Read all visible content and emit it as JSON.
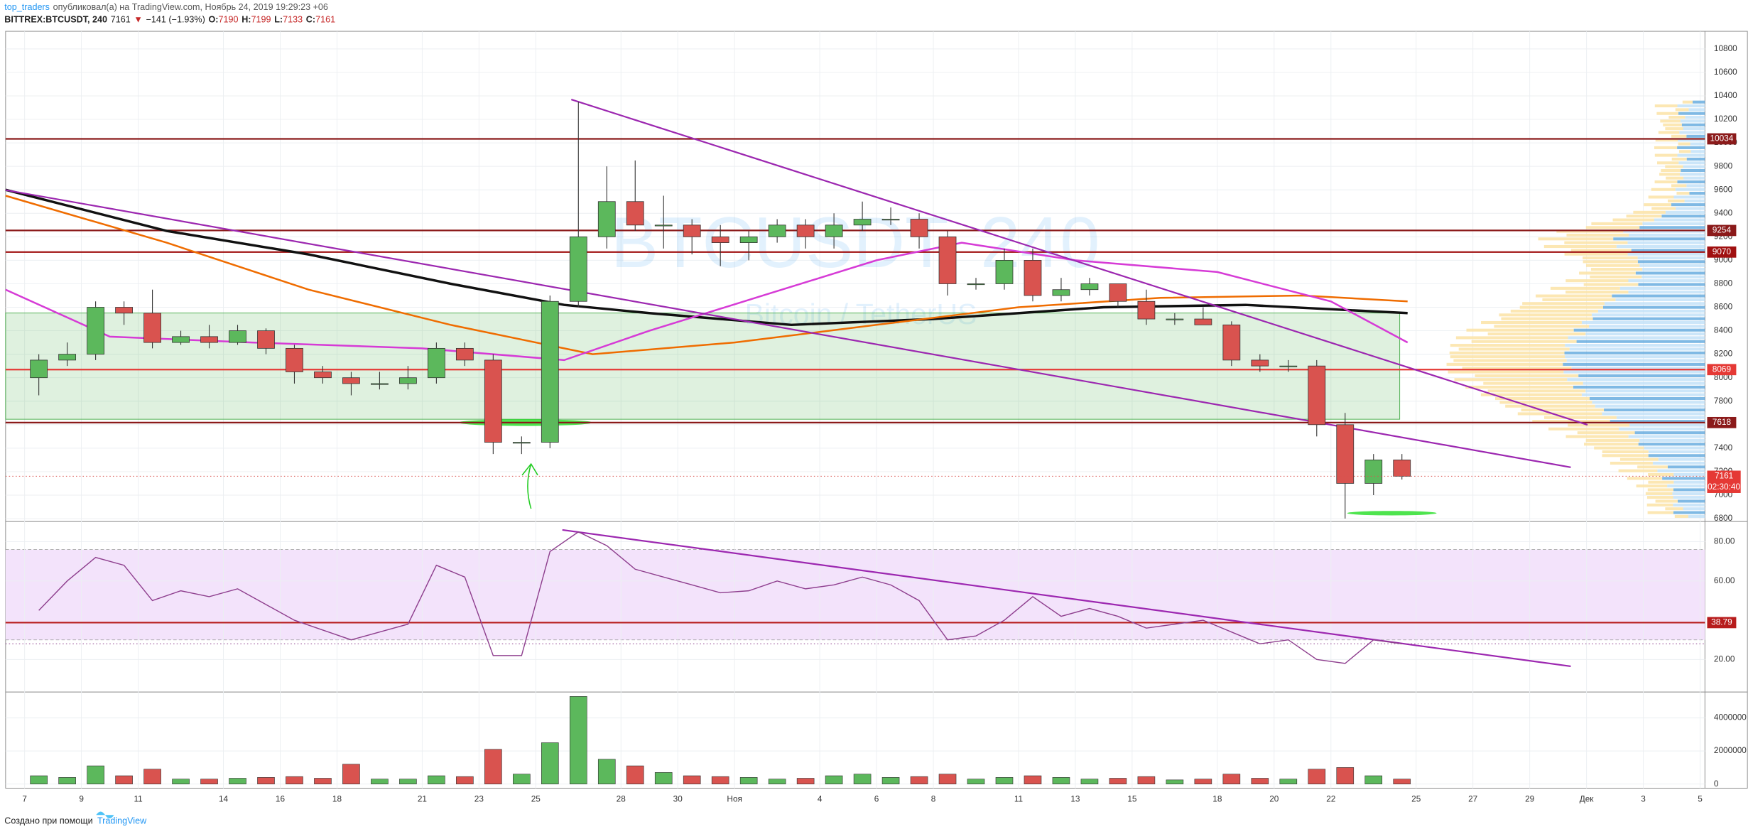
{
  "header": {
    "author": "top_traders",
    "published": "опубликовал(а) на TradingView.com, Ноябрь 24, 2019 19:29:23 +06",
    "symbol": "BITTREX:BTCUSDT, 240",
    "last": "7161",
    "arrow": "▼",
    "change": "−141 (−1.93%)",
    "o_label": "O:",
    "o": "7190",
    "h_label": "H:",
    "h": "7199",
    "l_label": "L:",
    "l": "7133",
    "c_label": "C:",
    "c": "7161"
  },
  "footer": {
    "text": "Создано при помощи",
    "brand": "TradingView"
  },
  "chart_data": [
    {
      "type": "candlestick",
      "watermark": "BTCUSDT, 240",
      "watermark_sub": "Bitcoin / TetherUS",
      "open": [
        8000,
        8150,
        8200,
        8600,
        8550,
        8300,
        8350,
        8300,
        8400,
        8250,
        8050,
        8000,
        7950,
        7950,
        8000,
        8250,
        8150,
        7450,
        7450,
        8650,
        9200,
        9500,
        9300,
        9300,
        9200,
        9150,
        9200,
        9300,
        9200,
        9300,
        9350,
        9350,
        9200,
        8800,
        8800,
        9000,
        8700,
        8750,
        8800,
        8650,
        8500,
        8500,
        8450,
        8150,
        8100,
        8100,
        7600,
        7100,
        7300
      ],
      "high": [
        8200,
        8300,
        8650,
        8650,
        8750,
        8400,
        8450,
        8450,
        8420,
        8280,
        8100,
        8050,
        8050,
        8100,
        8300,
        8300,
        8200,
        7500,
        8700,
        10350,
        9800,
        9850,
        9550,
        9350,
        9300,
        9250,
        9350,
        9350,
        9400,
        9500,
        9450,
        9400,
        9250,
        8850,
        9100,
        9100,
        8850,
        8850,
        8800,
        8750,
        8550,
        8600,
        8480,
        8200,
        8150,
        8150,
        7700,
        7350,
        7350
      ],
      "low": [
        7850,
        8100,
        8150,
        8450,
        8250,
        8280,
        8250,
        8280,
        8200,
        7950,
        7950,
        7850,
        7900,
        7900,
        7950,
        8100,
        7350,
        7350,
        7400,
        8600,
        9100,
        9250,
        9100,
        9050,
        8950,
        9000,
        9150,
        9100,
        9100,
        9250,
        9300,
        9100,
        8700,
        8750,
        8750,
        8650,
        8650,
        8700,
        8600,
        8450,
        8450,
        8450,
        8100,
        8050,
        8050,
        7500,
        6800,
        7000,
        7133
      ],
      "close": [
        8150,
        8200,
        8600,
        8550,
        8300,
        8350,
        8300,
        8400,
        8250,
        8050,
        8000,
        7950,
        7950,
        8000,
        8250,
        8150,
        7450,
        7450,
        8650,
        9200,
        9500,
        9300,
        9300,
        9200,
        9150,
        9200,
        9300,
        9200,
        9300,
        9350,
        9350,
        9200,
        8800,
        8800,
        9000,
        8700,
        8750,
        8800,
        8650,
        8500,
        8500,
        8450,
        8150,
        8100,
        8100,
        7600,
        7100,
        7300,
        7161
      ],
      "up_color": "#5cb85c",
      "down_color": "#d9534f",
      "countdown": "02:30:40",
      "ylim": [
        6780,
        10950
      ],
      "yticks": [
        6800,
        7000,
        7200,
        7400,
        7600,
        7800,
        8000,
        8200,
        8400,
        8600,
        8800,
        9000,
        9200,
        9400,
        9600,
        9800,
        10000,
        10200,
        10400,
        10600,
        10800
      ],
      "levels": [
        10034,
        9254,
        9070,
        8069,
        7618
      ],
      "level_colors": [
        "#8b1a1a",
        "#8b1a1a",
        "#a01010",
        "#e53935",
        "#8b1a1a"
      ],
      "overlays": [
        {
          "color": "#111111",
          "x": [
            -0.67,
            5,
            10,
            15,
            19,
            22,
            27,
            32,
            38,
            43,
            48.7
          ],
          "values": [
            9600,
            9250,
            9050,
            8800,
            8620,
            8550,
            8450,
            8500,
            8600,
            8620,
            8550
          ]
        },
        {
          "color": "#ef6c00",
          "x": [
            -0.67,
            5,
            10,
            15,
            20,
            25,
            30,
            35,
            40,
            45,
            48.7
          ],
          "values": [
            9550,
            9150,
            8750,
            8450,
            8200,
            8300,
            8450,
            8600,
            8680,
            8700,
            8650
          ]
        },
        {
          "color": "#d63bd6",
          "x": [
            -0.67,
            3,
            8,
            14,
            19,
            22,
            26,
            30,
            33,
            37,
            42,
            46,
            48.7
          ],
          "values": [
            8750,
            8350,
            8300,
            8250,
            8150,
            8400,
            8700,
            9000,
            9150,
            9000,
            8900,
            8650,
            8300
          ]
        }
      ],
      "grid": true
    },
    {
      "type": "line",
      "color": "#8e3f8e",
      "band": [
        30,
        76
      ],
      "band_color": "#f3e3fb",
      "values": [
        45,
        60,
        72,
        68,
        50,
        55,
        52,
        56,
        48,
        40,
        35,
        30,
        34,
        38,
        68,
        62,
        22,
        22,
        75,
        85,
        78,
        66,
        62,
        58,
        54,
        55,
        60,
        56,
        58,
        62,
        58,
        50,
        30,
        32,
        40,
        52,
        42,
        46,
        42,
        36,
        38,
        40,
        34,
        28,
        30,
        20,
        18,
        30,
        28
      ],
      "ylim": [
        4,
        90
      ],
      "yticks": [
        {
          "value": 20,
          "label": "20.00"
        },
        {
          "value": 60,
          "label": "60.00"
        },
        {
          "value": 80,
          "label": "80.00"
        }
      ],
      "levels": [
        38.79
      ],
      "level_colors": [
        "#b71c1c"
      ],
      "grid": true
    },
    {
      "type": "bar",
      "values": [
        500000,
        400000,
        1100000,
        500000,
        900000,
        300000,
        300000,
        350000,
        400000,
        450000,
        350000,
        1200000,
        300000,
        300000,
        500000,
        450000,
        2100000,
        600000,
        2500000,
        5300000,
        1500000,
        1100000,
        700000,
        500000,
        450000,
        400000,
        300000,
        350000,
        500000,
        600000,
        400000,
        450000,
        600000,
        300000,
        400000,
        500000,
        400000,
        300000,
        350000,
        450000,
        250000,
        300000,
        600000,
        350000,
        300000,
        900000,
        1000000,
        500000,
        300000
      ],
      "ylim": [
        -250000,
        5500000
      ],
      "yticks": [
        0,
        2000000,
        4000000
      ],
      "xlim": [
        -0.67,
        59.17
      ],
      "xticks": [
        {
          "value": 0,
          "label": "7"
        },
        {
          "value": 2,
          "label": "9"
        },
        {
          "value": 4,
          "label": "11"
        },
        {
          "value": 7,
          "label": "14"
        },
        {
          "value": 9,
          "label": "16"
        },
        {
          "value": 11,
          "label": "18"
        },
        {
          "value": 14,
          "label": "21"
        },
        {
          "value": 16,
          "label": "23"
        },
        {
          "value": 18,
          "label": "25"
        },
        {
          "value": 21,
          "label": "28"
        },
        {
          "value": 23,
          "label": "30"
        },
        {
          "value": 25,
          "label": "Ноя"
        },
        {
          "value": 28,
          "label": "4"
        },
        {
          "value": 30,
          "label": "6"
        },
        {
          "value": 32,
          "label": "8"
        },
        {
          "value": 35,
          "label": "11"
        },
        {
          "value": 37,
          "label": "13"
        },
        {
          "value": 39,
          "label": "15"
        },
        {
          "value": 42,
          "label": "18"
        },
        {
          "value": 44,
          "label": "20"
        },
        {
          "value": 46,
          "label": "22"
        },
        {
          "value": 49,
          "label": "25"
        },
        {
          "value": 51,
          "label": "27"
        },
        {
          "value": 53,
          "label": "29"
        },
        {
          "value": 55,
          "label": "Дек"
        },
        {
          "value": 57,
          "label": "3"
        },
        {
          "value": 59,
          "label": "5"
        }
      ],
      "grid": true
    }
  ]
}
